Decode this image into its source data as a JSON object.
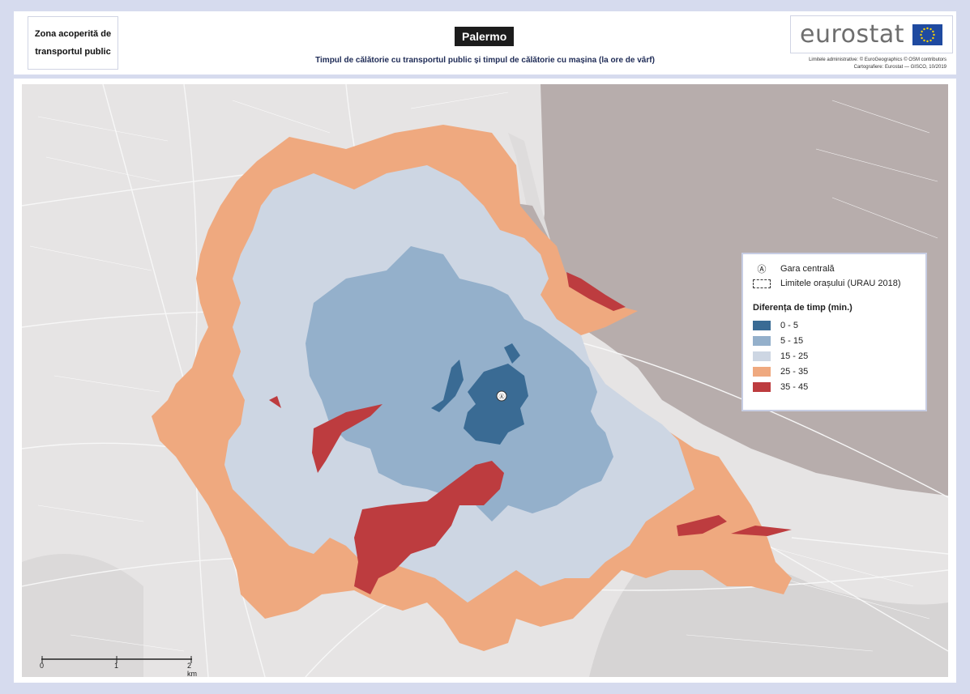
{
  "header": {
    "coverage_label_1": "Zona acoperită de",
    "coverage_label_2": "transportul public",
    "city": "Palermo",
    "subtitle": "Timpul de călătorie cu transportul public și timpul de călătorie cu mașina (la ore de vârf)",
    "logo": "eurostat",
    "credit_1": "Limitele administrative: © EuroGeographics © OSM contributors",
    "credit_2": "Cartografiere: Eurostat — GISCO, 10/2019"
  },
  "legend": {
    "station_label": "Gara centrală",
    "boundary_label": "Limitele orașului (URAU 2018)",
    "title": "Diferența de timp (min.)",
    "classes": [
      {
        "label": "0 - 5",
        "color": "#3a6b94"
      },
      {
        "label": "5 - 15",
        "color": "#94b0cb"
      },
      {
        "label": "15 - 25",
        "color": "#cdd6e3"
      },
      {
        "label": "25 - 35",
        "color": "#efa97f"
      },
      {
        "label": "35 - 45",
        "color": "#bd3c3f"
      }
    ]
  },
  "scalebar": {
    "labels": [
      "0",
      "1",
      "2 km"
    ]
  },
  "colors": {
    "sea": "#b7adac",
    "land": "#e6e4e4",
    "frame": "#d6dbee"
  }
}
